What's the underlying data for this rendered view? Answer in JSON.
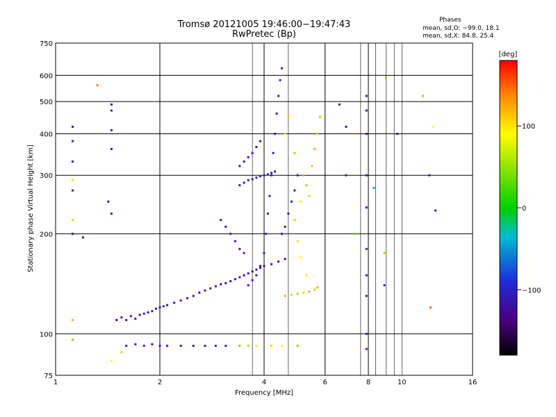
{
  "header": {
    "title": "Tromsø 20121005 19:46:00−19:47:43",
    "subtitle": "RwPretec (Bp)",
    "stats_title": "Phases",
    "stats_line1": "mean, sd,O: −99.0, 18.1",
    "stats_line2": "mean, sd,X:  84.8, 25.4"
  },
  "colorbar": {
    "label": "[deg]",
    "ticks": [
      {
        "value": 100,
        "label": "100"
      },
      {
        "value": 0,
        "label": "0"
      },
      {
        "value": -100,
        "label": "−100"
      }
    ],
    "range": [
      -180,
      180
    ]
  },
  "colors": {
    "o_mode": "#2a3ad6",
    "x_mode": "#c8f000",
    "grid": "#000000"
  },
  "chart_data": {
    "type": "scatter",
    "title": "Tromsø 20121005 19:46:00−19:47:43",
    "subtitle": "RwPretec (Bp)",
    "xlabel": "Frequency [MHz]",
    "ylabel": "Stationary phase Virtual Height [km]",
    "x_scale": "log",
    "y_scale": "log",
    "xlim": [
      1,
      16
    ],
    "ylim": [
      75,
      750
    ],
    "x_ticks": [
      {
        "value": 1,
        "label": "1"
      },
      {
        "value": 2,
        "label": "2"
      },
      {
        "value": 4,
        "label": "4"
      },
      {
        "value": 6,
        "label": "6"
      },
      {
        "value": 8,
        "label": "8"
      },
      {
        "value": 10,
        "label": "10"
      },
      {
        "value": 16,
        "label": "16"
      }
    ],
    "y_ticks": [
      {
        "value": 75,
        "label": "75"
      },
      {
        "value": 100,
        "label": "100"
      },
      {
        "value": 200,
        "label": "200"
      },
      {
        "value": 300,
        "label": "300"
      },
      {
        "value": 400,
        "label": "400"
      },
      {
        "value": 500,
        "label": "500"
      },
      {
        "value": 600,
        "label": "600"
      },
      {
        "value": 750,
        "label": "750"
      }
    ],
    "major_grid_x": [
      1,
      2,
      4,
      6,
      8,
      16
    ],
    "minor_grid_x": [
      3.7,
      4.7,
      7.6,
      8.4,
      9.0,
      9.5,
      10
    ],
    "grid_y": [
      100,
      200,
      300,
      400,
      500,
      600
    ],
    "color_scale": "rainbow (phase, deg)",
    "grid": true,
    "points": [
      [
        1.55,
        112,
        -110
      ],
      [
        1.6,
        110,
        -100
      ],
      [
        1.65,
        113,
        -115
      ],
      [
        1.7,
        111,
        -105
      ],
      [
        1.75,
        114,
        -110
      ],
      [
        1.8,
        115,
        -95
      ],
      [
        1.85,
        116,
        -100
      ],
      [
        1.9,
        117,
        -110
      ],
      [
        1.95,
        119,
        -105
      ],
      [
        2.0,
        120,
        -100
      ],
      [
        2.05,
        121,
        -90
      ],
      [
        2.1,
        122,
        -110
      ],
      [
        2.2,
        124,
        -100
      ],
      [
        2.3,
        126,
        -95
      ],
      [
        2.4,
        128,
        -110
      ],
      [
        2.5,
        130,
        -100
      ],
      [
        2.6,
        133,
        -120
      ],
      [
        2.7,
        135,
        -105
      ],
      [
        2.8,
        137,
        -110
      ],
      [
        2.9,
        139,
        -115
      ],
      [
        3.0,
        141,
        -120
      ],
      [
        3.1,
        142,
        -110
      ],
      [
        3.2,
        144,
        -120
      ],
      [
        3.3,
        146,
        -115
      ],
      [
        3.4,
        148,
        -105
      ],
      [
        3.5,
        150,
        -100
      ],
      [
        3.6,
        152,
        -110
      ],
      [
        3.7,
        154,
        -115
      ],
      [
        3.8,
        156,
        -110
      ],
      [
        3.9,
        158,
        -100
      ],
      [
        4.0,
        160,
        -110
      ],
      [
        4.2,
        162,
        -105
      ],
      [
        4.4,
        165,
        -100
      ],
      [
        4.6,
        168,
        -110
      ],
      [
        3.6,
        140,
        -100
      ],
      [
        3.7,
        145,
        -90
      ],
      [
        3.8,
        150,
        -105
      ],
      [
        3.9,
        160,
        -110
      ],
      [
        4.0,
        175,
        -100
      ],
      [
        4.05,
        200,
        -95
      ],
      [
        4.1,
        230,
        -110
      ],
      [
        4.15,
        260,
        -105
      ],
      [
        4.2,
        300,
        -100
      ],
      [
        4.25,
        350,
        -110
      ],
      [
        4.3,
        400,
        -100
      ],
      [
        4.35,
        460,
        -95
      ],
      [
        4.4,
        520,
        -105
      ],
      [
        4.45,
        580,
        -100
      ],
      [
        4.5,
        630,
        -110
      ],
      [
        3.4,
        280,
        -100
      ],
      [
        3.5,
        285,
        -110
      ],
      [
        3.6,
        290,
        -100
      ],
      [
        3.7,
        292,
        -95
      ],
      [
        3.8,
        295,
        -105
      ],
      [
        3.9,
        298,
        -110
      ],
      [
        4.0,
        300,
        -100
      ],
      [
        4.1,
        302,
        -90
      ],
      [
        4.2,
        305,
        -105
      ],
      [
        4.3,
        308,
        -100
      ],
      [
        3.4,
        320,
        -115
      ],
      [
        3.5,
        330,
        -110
      ],
      [
        3.6,
        340,
        -105
      ],
      [
        3.7,
        350,
        -100
      ],
      [
        3.8,
        365,
        -110
      ],
      [
        3.9,
        380,
        -105
      ],
      [
        3.2,
        200,
        -100
      ],
      [
        3.3,
        190,
        -105
      ],
      [
        3.4,
        180,
        -110
      ],
      [
        3.5,
        175,
        -100
      ],
      [
        3.0,
        220,
        -105
      ],
      [
        3.1,
        210,
        -110
      ],
      [
        4.5,
        200,
        -100
      ],
      [
        4.6,
        210,
        -105
      ],
      [
        4.7,
        230,
        -110
      ],
      [
        4.8,
        250,
        -100
      ],
      [
        4.9,
        270,
        -95
      ],
      [
        5.0,
        300,
        -105
      ],
      [
        4.6,
        130,
        120
      ],
      [
        4.8,
        131,
        115
      ],
      [
        5.0,
        132,
        120
      ],
      [
        5.2,
        133,
        110
      ],
      [
        5.4,
        134,
        125
      ],
      [
        5.6,
        136,
        115
      ],
      [
        5.7,
        138,
        120
      ],
      [
        5.3,
        150,
        100
      ],
      [
        5.1,
        170,
        95
      ],
      [
        5.0,
        190,
        105
      ],
      [
        4.9,
        220,
        110
      ],
      [
        5.1,
        250,
        100
      ],
      [
        5.3,
        280,
        120
      ],
      [
        5.5,
        320,
        115
      ],
      [
        5.6,
        360,
        125
      ],
      [
        5.7,
        400,
        110
      ],
      [
        5.8,
        450,
        120
      ],
      [
        4.7,
        450,
        115
      ],
      [
        4.6,
        400,
        110
      ],
      [
        4.9,
        350,
        120
      ],
      [
        5.2,
        300,
        125
      ],
      [
        5.4,
        260,
        110
      ],
      [
        1.6,
        92,
        -110
      ],
      [
        1.7,
        93,
        -100
      ],
      [
        1.8,
        92,
        -105
      ],
      [
        1.9,
        93,
        -110
      ],
      [
        2.0,
        92,
        -95
      ],
      [
        2.1,
        92,
        -100
      ],
      [
        2.3,
        92,
        -110
      ],
      [
        2.5,
        92,
        -105
      ],
      [
        2.7,
        92,
        -110
      ],
      [
        2.9,
        92,
        -100
      ],
      [
        3.1,
        92,
        -95
      ],
      [
        3.4,
        92,
        40
      ],
      [
        3.6,
        92,
        60
      ],
      [
        3.8,
        92,
        100
      ],
      [
        4.2,
        92,
        110
      ],
      [
        4.5,
        92,
        90
      ],
      [
        5.0,
        92,
        40
      ],
      [
        1.12,
        420,
        -110
      ],
      [
        1.12,
        380,
        -100
      ],
      [
        1.12,
        330,
        -120
      ],
      [
        1.12,
        270,
        -105
      ],
      [
        1.12,
        200,
        -110
      ],
      [
        1.12,
        290,
        100
      ],
      [
        1.12,
        220,
        110
      ],
      [
        1.12,
        110,
        120
      ],
      [
        1.12,
        96,
        130
      ],
      [
        1.2,
        195,
        -110
      ],
      [
        1.32,
        560,
        140
      ],
      [
        1.45,
        490,
        -110
      ],
      [
        1.45,
        470,
        -100
      ],
      [
        1.45,
        410,
        -105
      ],
      [
        1.45,
        360,
        -115
      ],
      [
        1.42,
        250,
        -110
      ],
      [
        1.45,
        230,
        -100
      ],
      [
        1.5,
        110,
        -120
      ],
      [
        1.55,
        88,
        60
      ],
      [
        1.45,
        83,
        90
      ],
      [
        6.6,
        490,
        -110
      ],
      [
        6.9,
        420,
        -105
      ],
      [
        6.9,
        300,
        -100
      ],
      [
        7.3,
        200,
        30
      ],
      [
        7.9,
        520,
        -110
      ],
      [
        7.9,
        470,
        -105
      ],
      [
        7.9,
        400,
        -100
      ],
      [
        7.9,
        300,
        -110
      ],
      [
        7.9,
        240,
        -100
      ],
      [
        7.9,
        180,
        -105
      ],
      [
        7.9,
        150,
        -110
      ],
      [
        7.9,
        130,
        -115
      ],
      [
        7.9,
        100,
        -110
      ],
      [
        7.9,
        90,
        -105
      ],
      [
        8.3,
        275,
        -20
      ],
      [
        8.9,
        175,
        120
      ],
      [
        8.9,
        140,
        -100
      ],
      [
        9.0,
        590,
        130
      ],
      [
        9.7,
        400,
        -110
      ],
      [
        11.5,
        520,
        50
      ],
      [
        12.0,
        300,
        -100
      ],
      [
        12.5,
        235,
        -105
      ],
      [
        12.3,
        420,
        90
      ],
      [
        12.1,
        120,
        150
      ]
    ]
  }
}
